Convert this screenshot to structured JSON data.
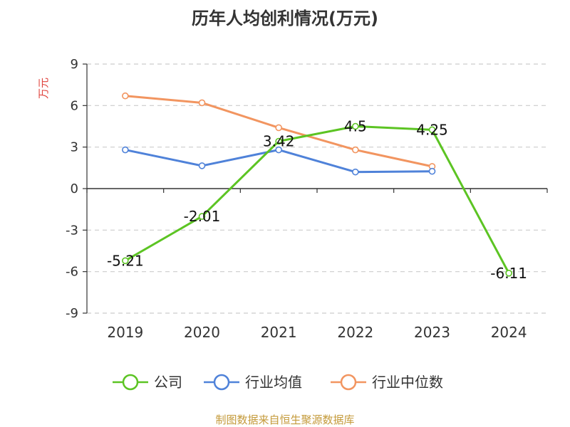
{
  "chart_data": {
    "type": "line",
    "title": "历年人均创利情况(万元)",
    "ylabel": "万元",
    "categories": [
      "2019",
      "2020",
      "2021",
      "2022",
      "2023",
      "2024"
    ],
    "y_ticks": [
      "9",
      "6",
      "3",
      "0",
      "-3",
      "-6",
      "-9"
    ],
    "ylim": [
      -9,
      9
    ],
    "grid": true,
    "legend_position": "bottom",
    "series": [
      {
        "name": "公司",
        "color": "#5cc423",
        "values": [
          -5.21,
          -2.01,
          3.42,
          4.5,
          4.25,
          -6.11
        ],
        "labels": [
          "-5.21",
          "-2.01",
          "3.42",
          "4.5",
          "4.25",
          "-6.11"
        ]
      },
      {
        "name": "行业均值",
        "color": "#4f82d9",
        "values": [
          2.8,
          1.65,
          2.8,
          1.2,
          1.25,
          null
        ]
      },
      {
        "name": "行业中位数",
        "color": "#f29560",
        "values": [
          6.7,
          6.2,
          4.4,
          2.8,
          1.6,
          null
        ]
      }
    ]
  },
  "footer": "制图数据来自恒生聚源数据库"
}
